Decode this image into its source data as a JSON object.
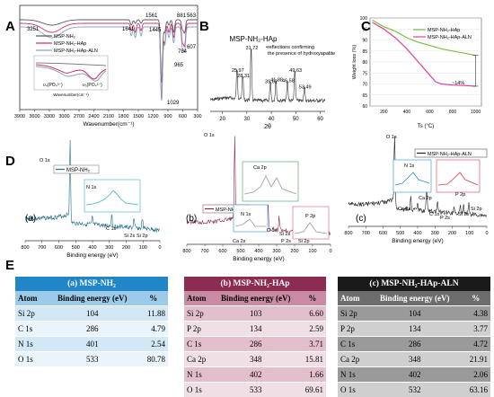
{
  "panels": {
    "A": "A",
    "B": "B",
    "C": "C",
    "D": "D",
    "E": "E"
  },
  "chart_data": [
    {
      "id": "A",
      "type": "line",
      "xlabel": "Wavenumber(cm⁻¹)",
      "ticks": [
        "3900",
        "3600",
        "3300",
        "3000",
        "2700",
        "2400",
        "2100",
        "1800",
        "1500",
        "1200",
        "900",
        "600",
        "300"
      ],
      "xlim": [
        3900,
        300
      ],
      "series": [
        {
          "name": "MSP-NH₂",
          "color": "#5a5a5a"
        },
        {
          "name": "MSP-NH₂-HAp",
          "color": "#cc3366"
        },
        {
          "name": "MSP-NH₂-HAp-ALN",
          "color": "#8aa0c0"
        }
      ],
      "annotations": [
        "3251",
        "1641",
        "1561",
        "1445",
        "881",
        "784",
        "965",
        "607",
        "563",
        "1029"
      ],
      "inset": {
        "xlabel": "Wavenumber(cm⁻¹)",
        "ticks": [
          "1400",
          "1350",
          "1300",
          "1250",
          "1200",
          "1150",
          "1100",
          "1050",
          "1000"
        ],
        "labels": [
          "υ₄(PO₄³⁻)",
          "υ₃(PO₄³⁻)"
        ]
      }
    },
    {
      "id": "B",
      "type": "line",
      "title": "MSP-NH₂-HAp",
      "xlabel": "2θ",
      "ticks": [
        "20",
        "30",
        "40",
        "50",
        "60"
      ],
      "xlim": [
        15,
        62
      ],
      "peaks": [
        {
          "x": 25.97,
          "y": 0.55,
          "label": "25,97"
        },
        {
          "x": 28.31,
          "y": 0.45,
          "label": "28,31"
        },
        {
          "x": 31.72,
          "y": 0.95,
          "label": "31,72"
        },
        {
          "x": 39.62,
          "y": 0.35,
          "label": "39,62"
        },
        {
          "x": 41.88,
          "y": 0.38,
          "label": "41,88"
        },
        {
          "x": 46.58,
          "y": 0.36,
          "label": "46,58"
        },
        {
          "x": 49.63,
          "y": 0.55,
          "label": "49,63"
        },
        {
          "x": 53.49,
          "y": 0.25,
          "label": "53,49"
        }
      ],
      "note": "reflections confirming the presence of hydroxyapatite"
    },
    {
      "id": "C",
      "type": "line",
      "xlabel": "Ts (°C)",
      "ylabel": "Weight loss (%)",
      "xticks": [
        200,
        400,
        600,
        800,
        1000
      ],
      "yticks": [
        100,
        95,
        90,
        85,
        80,
        75,
        70,
        65,
        60
      ],
      "xlim": [
        80,
        1050
      ],
      "ylim": [
        60,
        100
      ],
      "series": [
        {
          "name": "MSP-NH₂-HAp",
          "color": "#7bc043",
          "points": [
            [
              100,
              99
            ],
            [
              200,
              96
            ],
            [
              300,
              94
            ],
            [
              400,
              91
            ],
            [
              500,
              89
            ],
            [
              600,
              87.5
            ],
            [
              700,
              86
            ],
            [
              800,
              85
            ],
            [
              900,
              84
            ],
            [
              1000,
              83
            ]
          ]
        },
        {
          "name": "MSP-NH₂-HAp-ALN",
          "color": "#e0409a",
          "points": [
            [
              100,
              98
            ],
            [
              200,
              95
            ],
            [
              300,
              91
            ],
            [
              400,
              86
            ],
            [
              500,
              80
            ],
            [
              600,
              74
            ],
            [
              650,
              71
            ],
            [
              700,
              70
            ],
            [
              800,
              69.5
            ],
            [
              900,
              69.3
            ],
            [
              1000,
              69
            ]
          ]
        }
      ],
      "annotation": "~14%"
    },
    {
      "id": "D-a",
      "type": "line",
      "label": "(a)",
      "legend": "MSP-NH₂",
      "peaks": [
        "O 1s",
        "N 1s",
        "C 1s",
        "Si 2s",
        "Si 2p"
      ],
      "xlabel": "Binding energy (eV)",
      "ticks": [
        "800",
        "700",
        "600",
        "500",
        "400",
        "300",
        "200",
        "100",
        "0"
      ]
    },
    {
      "id": "D-b",
      "type": "line",
      "label": "(b)",
      "legend": "MSP-NH₂-HAp",
      "peaks": [
        "O 1s",
        "Ca 2p",
        "N 1s",
        "Ca 2s",
        "C 1s",
        "Si 2s",
        "P 2s",
        "Si 2p",
        "P 2p"
      ],
      "xlabel": "Binding energy (eV)",
      "ticks": [
        "800",
        "700",
        "600",
        "500",
        "400",
        "300",
        "200",
        "100",
        "0"
      ]
    },
    {
      "id": "D-c",
      "type": "line",
      "label": "(c)",
      "legend": "MSP-NH₂-HAp-ALN",
      "peaks": [
        "O 1s",
        "N 1s",
        "Ca 2p",
        "Ca 2s",
        "C 1s",
        "P 2s",
        "Si 2s",
        "Si 2p",
        "P 2p"
      ],
      "xlabel": "Binding energy (eV)",
      "ticks": [
        "800",
        "700",
        "600",
        "500",
        "400",
        "300",
        "200",
        "100",
        "0"
      ]
    }
  ],
  "tables": {
    "a": {
      "title": "(a) MSP-NH₂",
      "h1": "Atom",
      "h2": "Binding energy (eV)",
      "h3": "%",
      "rows": [
        [
          "Si 2p",
          "104",
          "11.88"
        ],
        [
          "C 1s",
          "286",
          "4.79"
        ],
        [
          "N 1s",
          "401",
          "2.54"
        ],
        [
          "O 1s",
          "533",
          "80.78"
        ]
      ]
    },
    "b": {
      "title": "(b) MSP-NH₂-HAp",
      "h1": "Atom",
      "h2": "Binding energy (eV)",
      "h3": "%",
      "rows": [
        [
          "Si 2p",
          "103",
          "6.60"
        ],
        [
          "P 2p",
          "134",
          "2.59"
        ],
        [
          "C 1s",
          "286",
          "3.71"
        ],
        [
          "Ca 2p",
          "348",
          "15.81"
        ],
        [
          "N 1s",
          "402",
          "1.66"
        ],
        [
          "O 1s",
          "533",
          "69.61"
        ]
      ]
    },
    "c": {
      "title": "(c) MSP-NH₂-HAp-ALN",
      "h1": "Atom",
      "h2": "Binding energy (eV)",
      "h3": "%",
      "rows": [
        [
          "Si 2p",
          "104",
          "4.38"
        ],
        [
          "P 2p",
          "134",
          "3.77"
        ],
        [
          "C 1s",
          "286",
          "4.72"
        ],
        [
          "Ca 2p",
          "348",
          "21.91"
        ],
        [
          "N 1s",
          "402",
          "2.06"
        ],
        [
          "O 1s",
          "532",
          "63.16"
        ]
      ]
    }
  }
}
